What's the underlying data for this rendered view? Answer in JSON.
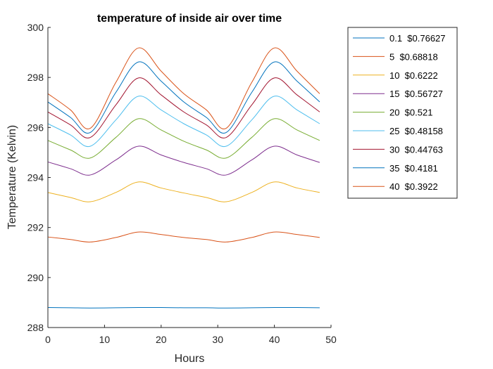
{
  "chart_data": {
    "type": "line",
    "title": "temperature of inside air over time",
    "xlabel": "Hours",
    "ylabel": "Temperature (Kelvin)",
    "xlim": [
      0,
      50
    ],
    "ylim": [
      288,
      300
    ],
    "x_ticks": [
      0,
      10,
      20,
      30,
      40,
      50
    ],
    "y_ticks": [
      288,
      290,
      292,
      294,
      296,
      298,
      300
    ],
    "grid": false,
    "legend_position": "outside-top-right",
    "x": [
      0,
      4,
      7.5,
      12,
      16,
      20,
      24,
      28,
      31.5,
      36,
      40,
      44,
      48
    ],
    "series": [
      {
        "name": "0.1  $0.76627",
        "color": "#0072BD",
        "values": [
          288.8,
          288.79,
          288.78,
          288.79,
          288.8,
          288.8,
          288.79,
          288.79,
          288.78,
          288.79,
          288.8,
          288.8,
          288.79
        ]
      },
      {
        "name": "5  $0.68818",
        "color": "#D95319",
        "values": [
          291.62,
          291.52,
          291.42,
          291.6,
          291.82,
          291.72,
          291.6,
          291.52,
          291.42,
          291.6,
          291.82,
          291.72,
          291.6
        ]
      },
      {
        "name": "10  $0.6222",
        "color": "#EDB120",
        "values": [
          293.4,
          293.2,
          293.03,
          293.4,
          293.82,
          293.58,
          293.38,
          293.2,
          293.03,
          293.4,
          293.82,
          293.58,
          293.4
        ]
      },
      {
        "name": "15  $0.56727",
        "color": "#7E2F8E",
        "values": [
          294.62,
          294.35,
          294.1,
          294.7,
          295.25,
          294.9,
          294.6,
          294.35,
          294.1,
          294.7,
          295.25,
          294.9,
          294.6
        ]
      },
      {
        "name": "20  $0.521",
        "color": "#77AC30",
        "values": [
          295.48,
          295.1,
          294.78,
          295.6,
          296.35,
          295.9,
          295.45,
          295.1,
          294.78,
          295.6,
          296.35,
          295.9,
          295.48
        ]
      },
      {
        "name": "25  $0.48158",
        "color": "#4DBEEE",
        "values": [
          296.15,
          295.7,
          295.25,
          296.3,
          297.25,
          296.7,
          296.15,
          295.7,
          295.25,
          296.3,
          297.25,
          296.7,
          296.15
        ]
      },
      {
        "name": "30  $0.44763",
        "color": "#A2142F",
        "values": [
          296.62,
          296.1,
          295.6,
          296.9,
          297.98,
          297.3,
          296.62,
          296.1,
          295.6,
          296.9,
          297.98,
          297.3,
          296.62
        ]
      },
      {
        "name": "35  $0.4181",
        "color": "#0072BD",
        "values": [
          297.02,
          296.4,
          295.8,
          297.4,
          298.62,
          297.85,
          297.02,
          296.4,
          295.8,
          297.4,
          298.62,
          297.85,
          297.02
        ]
      },
      {
        "name": "40  $0.3922",
        "color": "#D95319",
        "values": [
          297.35,
          296.7,
          295.97,
          297.8,
          299.18,
          298.25,
          297.35,
          296.7,
          295.97,
          297.8,
          299.18,
          298.25,
          297.35
        ]
      }
    ]
  }
}
